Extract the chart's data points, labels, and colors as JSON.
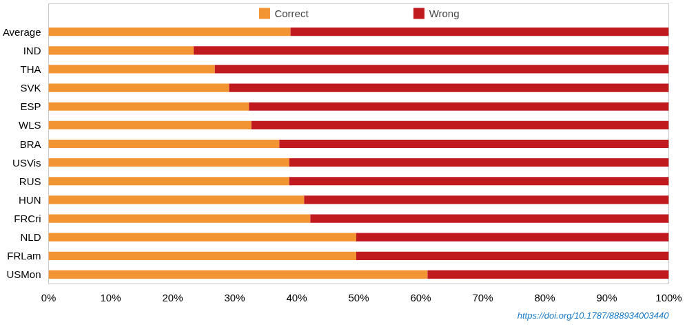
{
  "chart_data": {
    "type": "bar",
    "orientation": "horizontal",
    "stacked": true,
    "categories": [
      "Average",
      "IND",
      "THA",
      "SVK",
      "ESP",
      "WLS",
      "BRA",
      "USVis",
      "RUS",
      "HUN",
      "FRCri",
      "NLD",
      "FRLam",
      "USMon"
    ],
    "series": [
      {
        "name": "Correct",
        "color": "#f39432",
        "values": [
          39.0,
          23.4,
          26.8,
          29.1,
          32.3,
          32.7,
          37.2,
          38.8,
          38.8,
          41.2,
          42.2,
          49.6,
          49.6,
          61.1
        ]
      },
      {
        "name": "Wrong",
        "color": "#c0191e",
        "values": [
          61.0,
          76.6,
          73.2,
          70.9,
          67.7,
          67.3,
          62.8,
          61.2,
          61.2,
          58.8,
          57.8,
          50.4,
          50.4,
          38.9
        ]
      }
    ],
    "xlim": [
      0,
      100
    ],
    "xticks": [
      {
        "value": 0,
        "label": "0%"
      },
      {
        "value": 10,
        "label": "10%"
      },
      {
        "value": 20,
        "label": "20%"
      },
      {
        "value": 30,
        "label": "30%"
      },
      {
        "value": 40,
        "label": "40%"
      },
      {
        "value": 50,
        "label": "50%"
      },
      {
        "value": 60,
        "label": "60%"
      },
      {
        "value": 70,
        "label": "70%"
      },
      {
        "value": 80,
        "label": "80%"
      },
      {
        "value": 90,
        "label": "90%"
      },
      {
        "value": 100,
        "label": "100%"
      }
    ],
    "grid": false,
    "legend": "top",
    "annotations": [
      "https://doi.org/10.1787/888934003440"
    ]
  }
}
